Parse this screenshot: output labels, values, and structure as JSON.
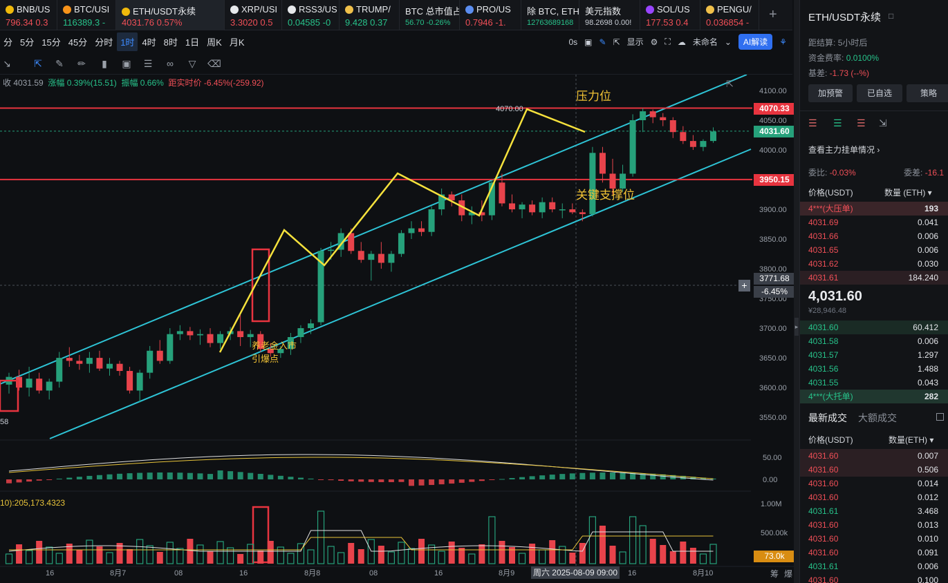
{
  "tabs": [
    {
      "name": "BNB/US",
      "price": "796.34",
      "change": "0.3",
      "dir": "dn",
      "icon": "#f0b90b"
    },
    {
      "name": "BTC/USI",
      "price": "116389.3",
      "change": "-",
      "dir": "up",
      "icon": "#f7931a"
    },
    {
      "name": "ETH/USDT永续",
      "price": "4031.76",
      "change": "0.57%",
      "dir": "dn",
      "icon": "#f0b90b"
    },
    {
      "name": "XRP/USI",
      "price": "3.3020",
      "change": "0.5",
      "dir": "dn",
      "icon": "#e6e8eb"
    },
    {
      "name": "RSS3/US",
      "price": "0.04585",
      "change": "-0",
      "dir": "up",
      "icon": "#e6e8eb"
    },
    {
      "name": "TRUMP/",
      "price": "9.428",
      "change": "0.37",
      "dir": "up",
      "icon": "#f0c04a"
    },
    {
      "name": "BTC 总市值占",
      "price": "56.70",
      "change": "-0.26%",
      "dir": "up",
      "icon": ""
    },
    {
      "name": "PRO/US",
      "price": "0.7946",
      "change": "-1.",
      "dir": "dn",
      "icon": "#5b8def"
    },
    {
      "name": "除 BTC, ETH",
      "price": "12763689168",
      "change": "",
      "dir": "up",
      "icon": ""
    },
    {
      "name": "美元指数",
      "price": "98.2698",
      "change": "0.00!",
      "dir": "neutral",
      "icon": ""
    },
    {
      "name": "SOL/US",
      "price": "177.53",
      "change": "0.4",
      "dir": "dn",
      "icon": "#9945ff"
    },
    {
      "name": "PENGU/",
      "price": "0.036854",
      "change": "-",
      "dir": "dn",
      "icon": "#f0c04a"
    }
  ],
  "timeframes": [
    "分",
    "5分",
    "15分",
    "45分",
    "分时",
    "1时",
    "4时",
    "8时",
    "1日",
    "周K",
    "月K"
  ],
  "active_timeframe": "1时",
  "toolbar": {
    "countdown": "0s",
    "display_label": "显示",
    "layout_name": "未命名",
    "ai_label": "AI解读"
  },
  "info_line": {
    "close": "收 4031.59",
    "change": "涨幅 0.39%(15.51)",
    "amplitude": "振幅 0.66%",
    "distance": "距实时价 -6.45%(-259.92)"
  },
  "price_axis": [
    "4100.00",
    "4050.00",
    "4000.00",
    "3950.00",
    "3900.00",
    "3850.00",
    "3800.00",
    "3750.00",
    "3700.00",
    "3650.00",
    "3600.00",
    "3550.00"
  ],
  "price_tags": {
    "resistance": "4070.33",
    "current": "4031.60",
    "support": "3950.15",
    "crosshair": "3771.68",
    "crosshair_pct": "-6.45%"
  },
  "annotations": {
    "resistance_label": "压力位",
    "support_label": "关键支撑位",
    "high_label": "4070.00",
    "entry_label_1": "养老金入市",
    "entry_label_2": "引爆点",
    "left_low": "58"
  },
  "macd_axis": [
    "50.00",
    "0.00"
  ],
  "volume": {
    "header": "10):205,173.4323",
    "axis": [
      "1.00M",
      "500.00k"
    ],
    "current": "73.0k"
  },
  "time_axis": [
    "16",
    "8月7",
    "08",
    "16",
    "8月8",
    "08",
    "16",
    "8月9",
    "16",
    "8月10"
  ],
  "time_cursor": "周六 2025-08-09 09:00",
  "axis_buttons": [
    "筹",
    "爆"
  ],
  "sidebar": {
    "title": "ETH/USDT永续",
    "settle_label": "距结算:",
    "settle_value": "5小时后",
    "funding_label": "资金费率:",
    "funding_value": "0.0100%",
    "basis_label": "基差:",
    "basis_value": "-1.73 (--%)",
    "buttons": [
      "加预警",
      "已自选",
      "策略"
    ],
    "depth_label": "查看主力挂单情况",
    "ratio_label": "委比:",
    "ratio_value": "-0.03%",
    "diff_label": "委差:",
    "diff_value": "-16.1",
    "col_price": "价格(USDT)",
    "col_qty": "数量 (ETH)",
    "asks": [
      {
        "p": "4***(大压单)",
        "q": "193"
      },
      {
        "p": "4031.69",
        "q": "0.041"
      },
      {
        "p": "4031.66",
        "q": "0.006"
      },
      {
        "p": "4031.65",
        "q": "0.006"
      },
      {
        "p": "4031.62",
        "q": "0.030"
      },
      {
        "p": "4031.61",
        "q": "184.240"
      }
    ],
    "last_price": "4,031.60",
    "last_cny": "¥28,946.48",
    "bids": [
      {
        "p": "4031.60",
        "q": "60.412"
      },
      {
        "p": "4031.58",
        "q": "0.006"
      },
      {
        "p": "4031.57",
        "q": "1.297"
      },
      {
        "p": "4031.56",
        "q": "1.488"
      },
      {
        "p": "4031.55",
        "q": "0.043"
      },
      {
        "p": "4***(大托单)",
        "q": "282"
      }
    ],
    "trade_tabs": [
      "最新成交",
      "大额成交"
    ],
    "trade_col_price": "价格(USDT)",
    "trade_col_qty": "数量(ETH)",
    "trades": [
      {
        "p": "4031.60",
        "q": "0.007",
        "dir": "dn"
      },
      {
        "p": "4031.60",
        "q": "0.506",
        "dir": "dn"
      },
      {
        "p": "4031.60",
        "q": "0.014",
        "dir": "dn"
      },
      {
        "p": "4031.60",
        "q": "0.012",
        "dir": "dn"
      },
      {
        "p": "4031.61",
        "q": "3.468",
        "dir": "up"
      },
      {
        "p": "4031.60",
        "q": "0.013",
        "dir": "dn"
      },
      {
        "p": "4031.60",
        "q": "0.010",
        "dir": "dn"
      },
      {
        "p": "4031.60",
        "q": "0.091",
        "dir": "dn"
      },
      {
        "p": "4031.61",
        "q": "0.006",
        "dir": "up"
      },
      {
        "p": "4031.60",
        "q": "0.100",
        "dir": "dn"
      }
    ]
  },
  "colors": {
    "up": "#26a17b",
    "down": "#e8434b",
    "channel": "#2ec4d6",
    "zigzag": "#f5e13c",
    "resistance_line": "#e8343f",
    "label": "#f2c335"
  },
  "chart_data": {
    "type": "candlestick",
    "interval": "1h",
    "ylim": [
      3500,
      4130
    ],
    "ohlc": [
      [
        3605,
        3625,
        3590,
        3618
      ],
      [
        3618,
        3630,
        3595,
        3600
      ],
      [
        3600,
        3635,
        3585,
        3615
      ],
      [
        3615,
        3625,
        3590,
        3595
      ],
      [
        3595,
        3615,
        3580,
        3610
      ],
      [
        3610,
        3660,
        3600,
        3650
      ],
      [
        3650,
        3668,
        3635,
        3645
      ],
      [
        3645,
        3655,
        3630,
        3640
      ],
      [
        3640,
        3660,
        3625,
        3650
      ],
      [
        3650,
        3662,
        3628,
        3632
      ],
      [
        3632,
        3650,
        3620,
        3640
      ],
      [
        3640,
        3645,
        3620,
        3628
      ],
      [
        3628,
        3635,
        3590,
        3595
      ],
      [
        3595,
        3630,
        3575,
        3625
      ],
      [
        3625,
        3670,
        3615,
        3662
      ],
      [
        3662,
        3680,
        3640,
        3645
      ],
      [
        3645,
        3700,
        3640,
        3690
      ],
      [
        3690,
        3705,
        3680,
        3695
      ],
      [
        3695,
        3702,
        3680,
        3688
      ],
      [
        3688,
        3698,
        3672,
        3690
      ],
      [
        3690,
        3700,
        3668,
        3675
      ],
      [
        3675,
        3695,
        3665,
        3690
      ],
      [
        3690,
        3702,
        3680,
        3695
      ],
      [
        3695,
        3722,
        3670,
        3685
      ],
      [
        3685,
        3697,
        3668,
        3690
      ],
      [
        3690,
        3695,
        3660,
        3665
      ],
      [
        3665,
        3675,
        3652,
        3658
      ],
      [
        3658,
        3670,
        3650,
        3665
      ],
      [
        3665,
        3692,
        3655,
        3685
      ],
      [
        3685,
        3705,
        3675,
        3700
      ],
      [
        3700,
        3715,
        3690,
        3708
      ],
      [
        3710,
        3835,
        3705,
        3830
      ],
      [
        3830,
        3845,
        3815,
        3832
      ],
      [
        3832,
        3868,
        3820,
        3860
      ],
      [
        3860,
        3868,
        3825,
        3830
      ],
      [
        3830,
        3845,
        3810,
        3815
      ],
      [
        3815,
        3830,
        3780,
        3825
      ],
      [
        3825,
        3845,
        3800,
        3810
      ],
      [
        3810,
        3830,
        3795,
        3825
      ],
      [
        3825,
        3865,
        3820,
        3860
      ],
      [
        3860,
        3880,
        3850,
        3868
      ],
      [
        3868,
        3880,
        3855,
        3862
      ],
      [
        3862,
        3905,
        3855,
        3900
      ],
      [
        3900,
        3935,
        3890,
        3925
      ],
      [
        3925,
        3930,
        3905,
        3915
      ],
      [
        3915,
        3925,
        3880,
        3890
      ],
      [
        3890,
        3905,
        3875,
        3895
      ],
      [
        3895,
        3915,
        3880,
        3890
      ],
      [
        3890,
        3950,
        3882,
        3945
      ],
      [
        3945,
        3960,
        3905,
        3910
      ],
      [
        3910,
        3925,
        3895,
        3900
      ],
      [
        3900,
        3912,
        3885,
        3908
      ],
      [
        3908,
        3915,
        3890,
        3895
      ],
      [
        3895,
        3920,
        3885,
        3912
      ],
      [
        3912,
        3920,
        3895,
        3900
      ],
      [
        3900,
        3910,
        3885,
        3900
      ],
      [
        3900,
        3910,
        3892,
        3895
      ],
      [
        3895,
        3900,
        3880,
        3892
      ],
      [
        3892,
        4005,
        3888,
        3995
      ],
      [
        3995,
        4005,
        3945,
        3960
      ],
      [
        3960,
        3985,
        3925,
        3935
      ],
      [
        3935,
        3975,
        3930,
        3960
      ],
      [
        3960,
        4060,
        3955,
        4050
      ],
      [
        4050,
        4070,
        4030,
        4065
      ],
      [
        4065,
        4068,
        4045,
        4055
      ],
      [
        4055,
        4062,
        4040,
        4050
      ],
      [
        4050,
        4055,
        4020,
        4030
      ],
      [
        4030,
        4040,
        4010,
        4015
      ],
      [
        4015,
        4025,
        4000,
        4005
      ],
      [
        4005,
        4018,
        3998,
        4015
      ],
      [
        4015,
        4038,
        4012,
        4031
      ]
    ],
    "resistance": 4070.33,
    "support": 3950.15
  }
}
